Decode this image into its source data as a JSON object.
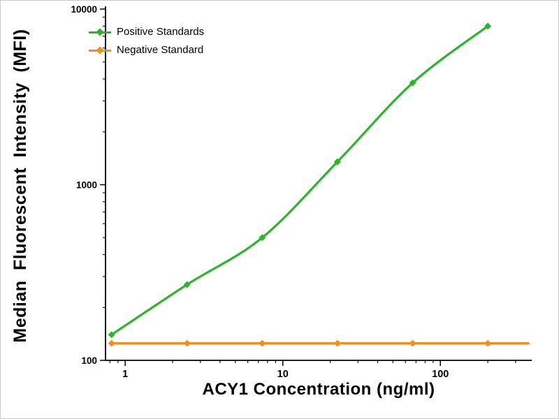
{
  "chart_data": {
    "type": "line",
    "title": "",
    "xlabel": "ACY1 Concentration (ng/ml)",
    "ylabel": "Median Fluorescent Intensity (MFI)",
    "x_scale": "log",
    "y_scale": "log",
    "xlim": [
      0.75,
      380
    ],
    "ylim": [
      100,
      10000
    ],
    "x_ticks": [
      "1",
      "10",
      "100"
    ],
    "y_ticks": [
      "100",
      "1000",
      "10000"
    ],
    "grid": false,
    "legend_position": "top-left",
    "axis_color": "#000000",
    "series": [
      {
        "name": "Positive Standards",
        "color": "#2cb42c",
        "marker": "diamond",
        "smooth": true,
        "x": [
          0.82,
          2.47,
          7.41,
          22.2,
          66.7,
          200
        ],
        "y": [
          140,
          270,
          500,
          1350,
          3800,
          8000
        ]
      },
      {
        "name": "Negative Standard",
        "color": "#ef8f1e",
        "marker": "diamond",
        "smooth": false,
        "extend_right": true,
        "x": [
          0.82,
          2.47,
          7.41,
          22.2,
          66.7,
          200
        ],
        "y": [
          125,
          125,
          125,
          125,
          125,
          125
        ]
      }
    ]
  }
}
